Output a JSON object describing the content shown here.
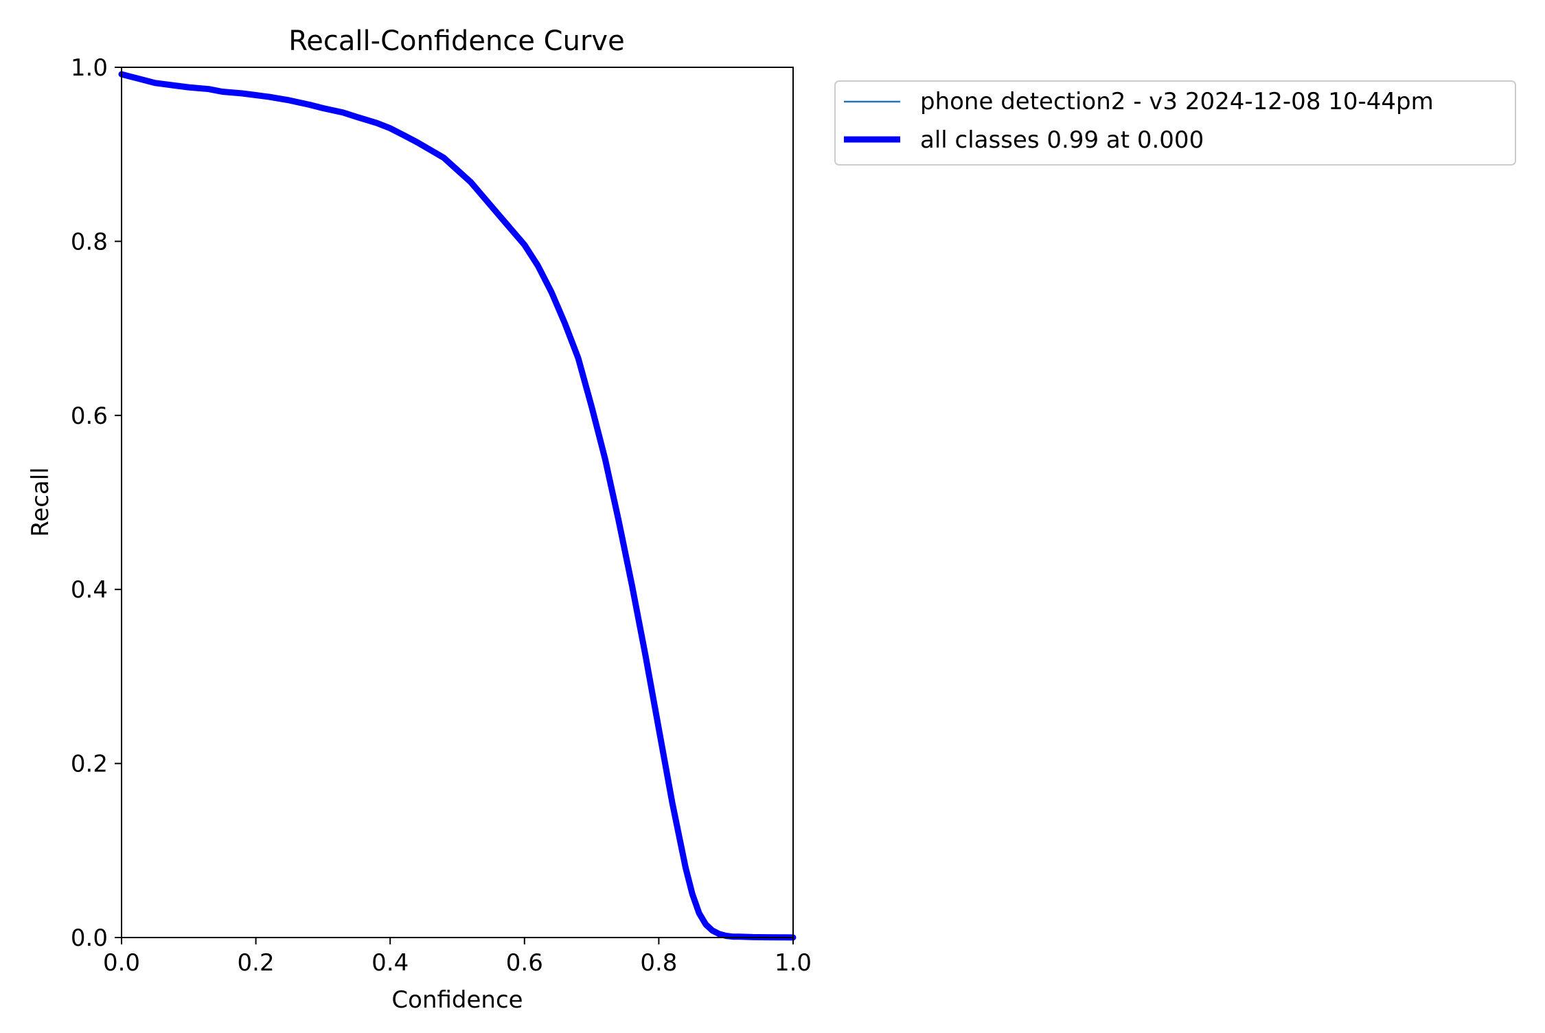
{
  "chart_data": {
    "type": "line",
    "title": "Recall-Confidence Curve",
    "xlabel": "Confidence",
    "ylabel": "Recall",
    "xlim": [
      0.0,
      1.0
    ],
    "ylim": [
      0.0,
      1.0
    ],
    "x_ticks": [
      "0.0",
      "0.2",
      "0.4",
      "0.6",
      "0.8",
      "1.0"
    ],
    "y_ticks": [
      "0.0",
      "0.2",
      "0.4",
      "0.6",
      "0.8",
      "1.0"
    ],
    "grid": false,
    "legend_placement": "outside-upper-right",
    "series": [
      {
        "name": "phone detection2 - v3 2024-12-08 10-44pm",
        "color": "#1f77b4",
        "x": [
          0.0,
          0.01,
          0.03,
          0.05,
          0.08,
          0.1,
          0.13,
          0.15,
          0.18,
          0.2,
          0.22,
          0.25,
          0.28,
          0.3,
          0.33,
          0.35,
          0.38,
          0.4,
          0.42,
          0.44,
          0.46,
          0.48,
          0.5,
          0.52,
          0.54,
          0.56,
          0.58,
          0.6,
          0.62,
          0.64,
          0.66,
          0.68,
          0.7,
          0.72,
          0.74,
          0.76,
          0.78,
          0.8,
          0.82,
          0.84,
          0.85,
          0.86,
          0.87,
          0.88,
          0.89,
          0.9,
          0.91,
          0.92,
          0.94,
          0.96,
          0.98,
          1.0
        ],
        "y": [
          0.992,
          0.99,
          0.986,
          0.982,
          0.979,
          0.977,
          0.975,
          0.972,
          0.97,
          0.968,
          0.966,
          0.962,
          0.957,
          0.953,
          0.948,
          0.943,
          0.936,
          0.93,
          0.922,
          0.914,
          0.905,
          0.896,
          0.882,
          0.868,
          0.85,
          0.832,
          0.814,
          0.796,
          0.772,
          0.742,
          0.706,
          0.666,
          0.61,
          0.55,
          0.48,
          0.405,
          0.325,
          0.24,
          0.155,
          0.08,
          0.05,
          0.028,
          0.015,
          0.008,
          0.004,
          0.002,
          0.001,
          0.001,
          0.0005,
          0.0003,
          0.0002,
          0.0001
        ]
      },
      {
        "name": "all classes 0.99 at 0.000",
        "color": "#0000ff",
        "x": [
          0.0,
          0.01,
          0.03,
          0.05,
          0.08,
          0.1,
          0.13,
          0.15,
          0.18,
          0.2,
          0.22,
          0.25,
          0.28,
          0.3,
          0.33,
          0.35,
          0.38,
          0.4,
          0.42,
          0.44,
          0.46,
          0.48,
          0.5,
          0.52,
          0.54,
          0.56,
          0.58,
          0.6,
          0.62,
          0.64,
          0.66,
          0.68,
          0.7,
          0.72,
          0.74,
          0.76,
          0.78,
          0.8,
          0.82,
          0.84,
          0.85,
          0.86,
          0.87,
          0.88,
          0.89,
          0.9,
          0.91,
          0.92,
          0.94,
          0.96,
          0.98,
          1.0
        ],
        "y": [
          0.992,
          0.99,
          0.986,
          0.982,
          0.979,
          0.977,
          0.975,
          0.972,
          0.97,
          0.968,
          0.966,
          0.962,
          0.957,
          0.953,
          0.948,
          0.943,
          0.936,
          0.93,
          0.922,
          0.914,
          0.905,
          0.896,
          0.882,
          0.868,
          0.85,
          0.832,
          0.814,
          0.796,
          0.772,
          0.742,
          0.706,
          0.666,
          0.61,
          0.55,
          0.48,
          0.405,
          0.325,
          0.24,
          0.155,
          0.08,
          0.05,
          0.028,
          0.015,
          0.008,
          0.004,
          0.002,
          0.001,
          0.001,
          0.0005,
          0.0003,
          0.0002,
          0.0001
        ]
      }
    ]
  }
}
